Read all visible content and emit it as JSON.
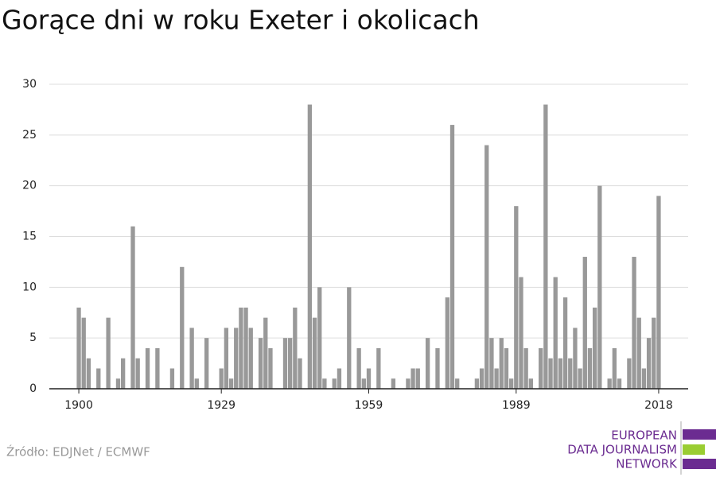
{
  "chart_data": {
    "type": "bar",
    "title": "Gorące dni w roku Exeter i okolicach",
    "x": [
      1900,
      1901,
      1902,
      1903,
      1904,
      1905,
      1906,
      1907,
      1908,
      1909,
      1910,
      1911,
      1912,
      1913,
      1914,
      1915,
      1916,
      1917,
      1918,
      1919,
      1920,
      1921,
      1922,
      1923,
      1924,
      1925,
      1926,
      1927,
      1928,
      1929,
      1930,
      1931,
      1932,
      1933,
      1934,
      1935,
      1936,
      1937,
      1938,
      1939,
      1940,
      1941,
      1942,
      1943,
      1944,
      1945,
      1946,
      1947,
      1948,
      1949,
      1950,
      1951,
      1952,
      1953,
      1954,
      1955,
      1956,
      1957,
      1958,
      1959,
      1960,
      1961,
      1962,
      1963,
      1964,
      1965,
      1966,
      1967,
      1968,
      1969,
      1970,
      1971,
      1972,
      1973,
      1974,
      1975,
      1976,
      1977,
      1978,
      1979,
      1980,
      1981,
      1982,
      1983,
      1984,
      1985,
      1986,
      1987,
      1988,
      1989,
      1990,
      1991,
      1992,
      1993,
      1994,
      1995,
      1996,
      1997,
      1998,
      1999,
      2000,
      2001,
      2002,
      2003,
      2004,
      2005,
      2006,
      2007,
      2008,
      2009,
      2010,
      2011,
      2012,
      2013,
      2014,
      2015,
      2016,
      2017,
      2018
    ],
    "values": [
      8,
      7,
      3,
      0,
      2,
      0,
      7,
      0,
      1,
      3,
      0,
      16,
      3,
      0,
      4,
      0,
      4,
      0,
      0,
      2,
      0,
      12,
      0,
      6,
      1,
      0,
      5,
      0,
      0,
      2,
      6,
      1,
      6,
      8,
      8,
      6,
      0,
      5,
      7,
      4,
      0,
      0,
      5,
      5,
      8,
      3,
      0,
      28,
      7,
      10,
      1,
      0,
      1,
      2,
      0,
      10,
      0,
      4,
      1,
      2,
      0,
      4,
      0,
      0,
      1,
      0,
      0,
      1,
      2,
      2,
      0,
      5,
      0,
      4,
      0,
      9,
      26,
      1,
      0,
      0,
      0,
      1,
      2,
      24,
      5,
      2,
      5,
      4,
      1,
      18,
      11,
      4,
      1,
      0,
      4,
      28,
      3,
      11,
      3,
      9,
      3,
      6,
      2,
      13,
      4,
      8,
      20,
      0,
      1,
      4,
      1,
      0,
      3,
      13,
      7,
      2,
      5,
      7,
      19
    ],
    "color": "#999999",
    "xlim": [
      1894,
      2024
    ],
    "xticks": [
      1900,
      1929,
      1959,
      1989,
      2018
    ],
    "ylim": [
      0,
      30
    ],
    "yticks": [
      0,
      5,
      10,
      15,
      20,
      25,
      30
    ],
    "grid": true,
    "source": "Źródło: EDJNet / ECMWF",
    "logo": [
      "EUROPEAN",
      "DATA JOURNALISM",
      "NETWORK"
    ]
  }
}
